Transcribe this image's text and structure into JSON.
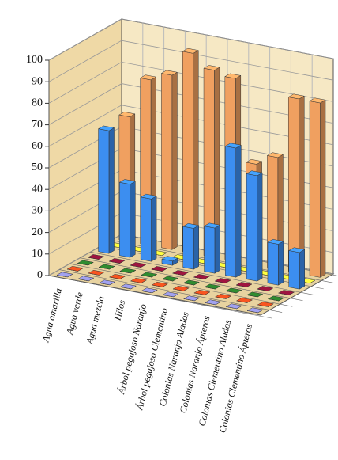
{
  "chart_data": {
    "type": "bar3d",
    "categories": [
      "Agua amarilla",
      "Agua verde",
      "Agua mezcla",
      "Hilos",
      "Árbol pegajoso Naranjo",
      "Árbol pegajoso Clementino",
      "Colonias Naranjo Alados",
      "Colonias Naranjo Ápteros",
      "Colonias Clementino Alados",
      "Colonias Clementino Ápteros"
    ],
    "series": [
      {
        "color": "#8c8cd0",
        "values": [
          0,
          0,
          0,
          0,
          0,
          0,
          0,
          0,
          0,
          0
        ]
      },
      {
        "color": "#d84a1c",
        "values": [
          0,
          0,
          0,
          0,
          0,
          0,
          0,
          0,
          0,
          0
        ]
      },
      {
        "color": "#2a7a2a",
        "values": [
          0,
          0,
          0,
          0,
          0,
          0,
          0,
          0,
          0,
          0
        ]
      },
      {
        "color": "#8a1238",
        "values": [
          0,
          0,
          0,
          0,
          0,
          0,
          0,
          0,
          0,
          0
        ]
      },
      {
        "color": "#3c8ef0",
        "values": [
          57,
          34,
          29,
          2,
          19,
          21,
          60,
          49,
          19,
          17
        ]
      },
      {
        "color": "#f2e838",
        "values": [
          0,
          0,
          0,
          0,
          0,
          0,
          0,
          0,
          0,
          0
        ]
      },
      {
        "color": "#f0a060",
        "values": [
          58,
          77,
          81,
          93,
          87,
          85,
          47,
          52,
          81,
          81
        ]
      }
    ],
    "ylim": [
      0,
      100
    ],
    "yticks": [
      0,
      10,
      20,
      30,
      40,
      50,
      60,
      70,
      80,
      90,
      100
    ],
    "grid": true
  }
}
